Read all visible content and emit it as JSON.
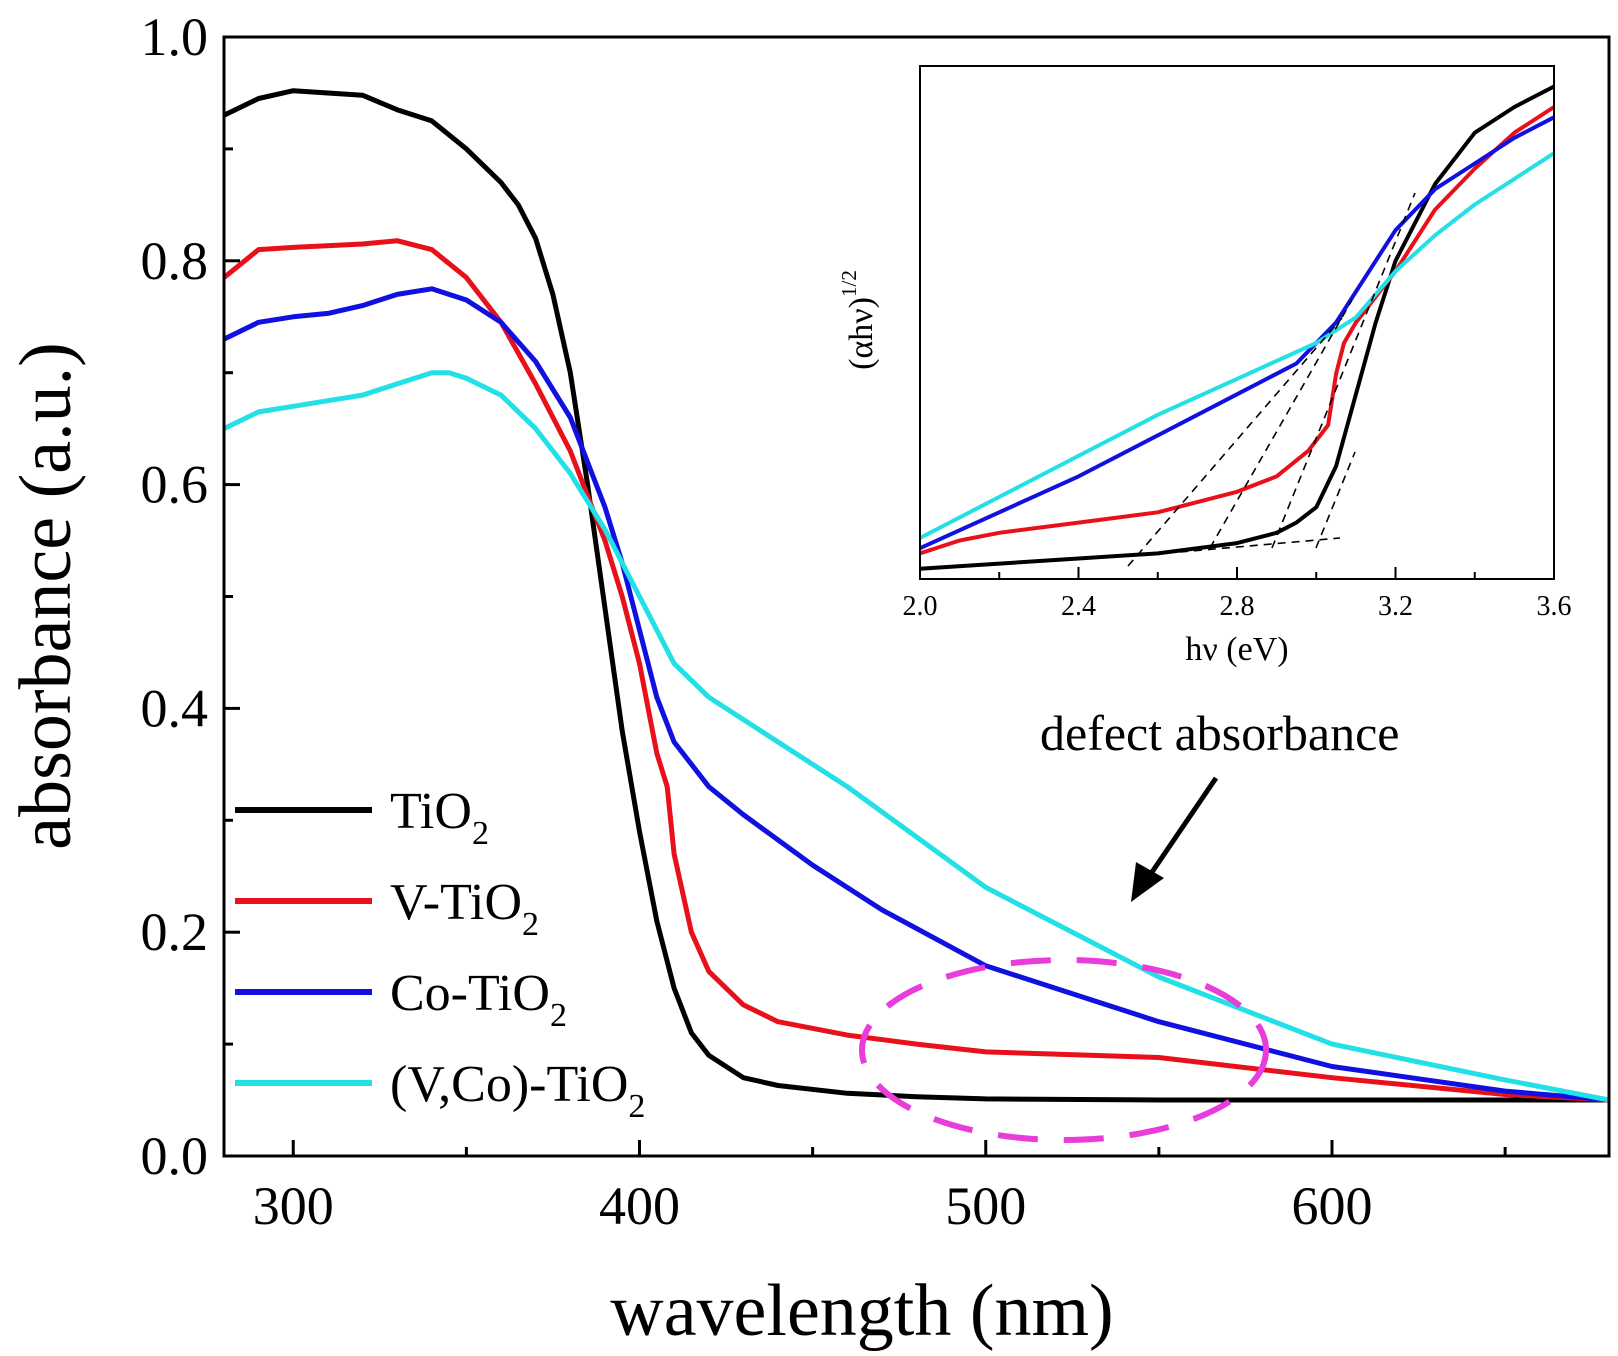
{
  "chart_data": [
    {
      "type": "line",
      "title": "",
      "xlabel": "wavelength (nm)",
      "ylabel": "absorbance (a.u.)",
      "xlim": [
        280,
        680
      ],
      "ylim": [
        0.0,
        1.0
      ],
      "xticks": [
        "300",
        "400",
        "500",
        "600"
      ],
      "xtick_values": [
        300,
        400,
        500,
        600
      ],
      "yticks": [
        "0.0",
        "0.2",
        "0.4",
        "0.6",
        "0.8",
        "1.0"
      ],
      "ytick_values": [
        0.0,
        0.2,
        0.4,
        0.6,
        0.8,
        1.0
      ],
      "legend_position": "bottom-left",
      "annotation": "defect absorbance",
      "series": [
        {
          "name": "TiO2",
          "legend_base": "TiO",
          "legend_sub": "2",
          "color": "#000000",
          "x": [
            280,
            290,
            300,
            310,
            320,
            330,
            340,
            350,
            360,
            365,
            370,
            375,
            380,
            385,
            390,
            395,
            400,
            405,
            410,
            415,
            420,
            430,
            440,
            460,
            480,
            500,
            550,
            600,
            650,
            680
          ],
          "y": [
            0.93,
            0.945,
            0.952,
            0.95,
            0.948,
            0.935,
            0.925,
            0.9,
            0.87,
            0.85,
            0.82,
            0.77,
            0.7,
            0.6,
            0.49,
            0.38,
            0.29,
            0.21,
            0.15,
            0.11,
            0.09,
            0.07,
            0.063,
            0.056,
            0.053,
            0.051,
            0.05,
            0.05,
            0.05,
            0.05
          ]
        },
        {
          "name": "V-TiO2",
          "legend_base": "V-TiO",
          "legend_sub": "2",
          "color": "#e8101a",
          "x": [
            280,
            290,
            300,
            320,
            330,
            340,
            350,
            360,
            370,
            380,
            385,
            390,
            395,
            400,
            405,
            408,
            410,
            415,
            420,
            430,
            440,
            460,
            480,
            500,
            550,
            600,
            650,
            680
          ],
          "y": [
            0.785,
            0.81,
            0.812,
            0.815,
            0.818,
            0.81,
            0.785,
            0.745,
            0.69,
            0.63,
            0.59,
            0.55,
            0.5,
            0.44,
            0.36,
            0.33,
            0.27,
            0.2,
            0.165,
            0.135,
            0.12,
            0.108,
            0.1,
            0.093,
            0.088,
            0.07,
            0.055,
            0.05
          ]
        },
        {
          "name": "Co-TiO2",
          "legend_base": "Co-TiO",
          "legend_sub": "2",
          "color": "#1010e0",
          "x": [
            280,
            290,
            300,
            310,
            320,
            330,
            340,
            345,
            350,
            360,
            370,
            380,
            390,
            395,
            400,
            405,
            410,
            420,
            430,
            450,
            470,
            500,
            550,
            600,
            650,
            680
          ],
          "y": [
            0.73,
            0.745,
            0.75,
            0.753,
            0.76,
            0.77,
            0.775,
            0.77,
            0.765,
            0.745,
            0.71,
            0.66,
            0.58,
            0.53,
            0.47,
            0.41,
            0.37,
            0.33,
            0.305,
            0.26,
            0.22,
            0.17,
            0.12,
            0.08,
            0.058,
            0.05
          ]
        },
        {
          "name": "(V,Co)-TiO2",
          "legend_base": "(V,Co)-TiO",
          "legend_sub": "2",
          "color": "#22e0e6",
          "x": [
            280,
            290,
            300,
            310,
            320,
            330,
            340,
            345,
            350,
            360,
            370,
            380,
            390,
            400,
            410,
            420,
            440,
            460,
            500,
            550,
            600,
            650,
            680
          ],
          "y": [
            0.65,
            0.665,
            0.67,
            0.675,
            0.68,
            0.69,
            0.7,
            0.7,
            0.695,
            0.68,
            0.65,
            0.61,
            0.56,
            0.5,
            0.44,
            0.41,
            0.37,
            0.33,
            0.24,
            0.16,
            0.1,
            0.068,
            0.05
          ]
        }
      ]
    },
    {
      "type": "line",
      "title": "",
      "xlabel": "hν (eV)",
      "ylabel_base": "(αhν)",
      "ylabel_sup": "1/2",
      "xlim": [
        2.0,
        3.6
      ],
      "ylim": [
        0.0,
        1.0
      ],
      "xticks": [
        "2.0",
        "2.4",
        "2.8",
        "3.2",
        "3.6"
      ],
      "xtick_values": [
        2.0,
        2.4,
        2.8,
        3.2,
        3.6
      ],
      "yticks": [],
      "series": [
        {
          "name": "TiO2",
          "color": "#000000",
          "x": [
            2.0,
            2.2,
            2.4,
            2.6,
            2.8,
            2.9,
            2.95,
            3.0,
            3.05,
            3.1,
            3.15,
            3.2,
            3.3,
            3.4,
            3.5,
            3.6
          ],
          "y": [
            0.02,
            0.03,
            0.04,
            0.05,
            0.07,
            0.09,
            0.11,
            0.14,
            0.22,
            0.36,
            0.5,
            0.62,
            0.77,
            0.87,
            0.92,
            0.96
          ]
        },
        {
          "name": "V-TiO2",
          "color": "#e8101a",
          "x": [
            2.0,
            2.1,
            2.2,
            2.4,
            2.6,
            2.8,
            2.9,
            2.98,
            3.03,
            3.05,
            3.07,
            3.1,
            3.15,
            3.2,
            3.3,
            3.4,
            3.5,
            3.6
          ],
          "y": [
            0.05,
            0.075,
            0.09,
            0.11,
            0.13,
            0.17,
            0.2,
            0.25,
            0.3,
            0.4,
            0.46,
            0.5,
            0.55,
            0.6,
            0.72,
            0.8,
            0.87,
            0.92
          ]
        },
        {
          "name": "Co-TiO2",
          "color": "#1010e0",
          "x": [
            2.0,
            2.2,
            2.4,
            2.6,
            2.8,
            2.95,
            3.05,
            3.1,
            3.15,
            3.2,
            3.3,
            3.4,
            3.5,
            3.6
          ],
          "y": [
            0.06,
            0.13,
            0.2,
            0.28,
            0.36,
            0.42,
            0.5,
            0.56,
            0.62,
            0.68,
            0.76,
            0.81,
            0.86,
            0.9
          ]
        },
        {
          "name": "(V,Co)-TiO2",
          "color": "#22e0e6",
          "x": [
            2.0,
            2.2,
            2.4,
            2.6,
            2.8,
            3.0,
            3.1,
            3.2,
            3.3,
            3.4,
            3.5,
            3.6
          ],
          "y": [
            0.08,
            0.16,
            0.24,
            0.32,
            0.39,
            0.46,
            0.51,
            0.6,
            0.67,
            0.73,
            0.78,
            0.83
          ]
        }
      ]
    }
  ]
}
